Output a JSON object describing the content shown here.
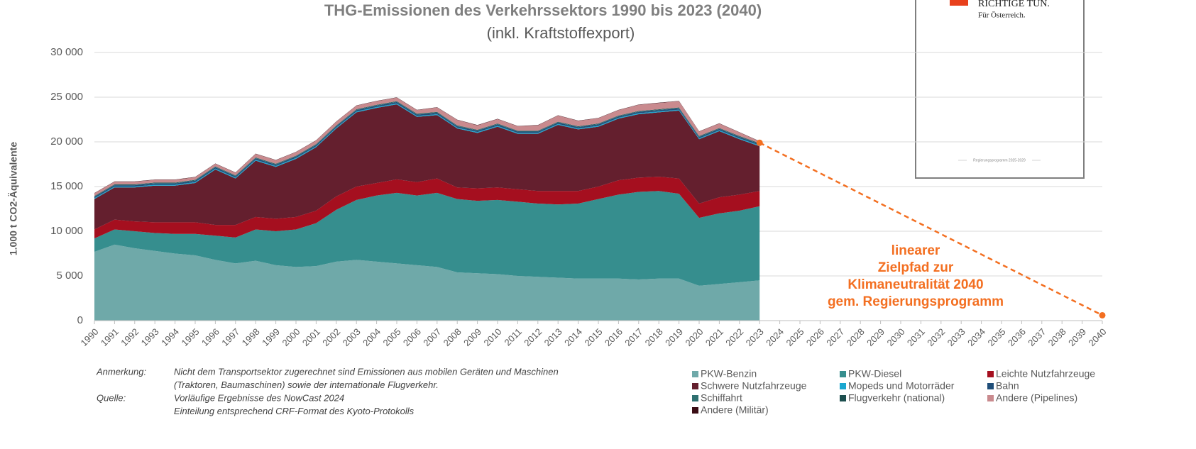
{
  "chart_data": {
    "type": "stacked-area",
    "title": "THG-Emissionen des Verkehrssektors 1990 bis 2023 (2040)",
    "subtitle": "(inkl. Kraftstoffexport)",
    "y_label": "1.000 t CO2-Äquivalente",
    "categories": [
      "1990",
      "1991",
      "1992",
      "1993",
      "1994",
      "1995",
      "1996",
      "1997",
      "1998",
      "1999",
      "2000",
      "2001",
      "2002",
      "2003",
      "2004",
      "2005",
      "2006",
      "2007",
      "2008",
      "2009",
      "2010",
      "2011",
      "2012",
      "2013",
      "2014",
      "2015",
      "2016",
      "2017",
      "2018",
      "2019",
      "2020",
      "2021",
      "2022",
      "2023",
      "2024",
      "2025",
      "2026",
      "2027",
      "2028",
      "2029",
      "2030",
      "2031",
      "2032",
      "2033",
      "2034",
      "2035",
      "2036",
      "2037",
      "2038",
      "2039",
      "2040"
    ],
    "ylim": [
      0,
      30000
    ],
    "yticks": [
      0,
      {
        "value": 5000,
        "label": "5 000"
      },
      {
        "value": 10000,
        "label": "10 000"
      },
      {
        "value": 15000,
        "label": "15 000"
      },
      {
        "value": 20000,
        "label": "20 000"
      },
      {
        "value": 25000,
        "label": "25 000"
      },
      {
        "value": 30000,
        "label": "30 000"
      }
    ],
    "grid": true,
    "series": [
      {
        "name": "PKW-Benzin",
        "color": "#6fa9a9",
        "values": [
          7700,
          8500,
          8100,
          7800,
          7500,
          7300,
          6800,
          6400,
          6700,
          6200,
          6000,
          6100,
          6600,
          6800,
          6600,
          6400,
          6200,
          6000,
          5400,
          5300,
          5200,
          5000,
          4900,
          4800,
          4700,
          4700,
          4700,
          4600,
          4700,
          4700,
          3900,
          4100,
          4300,
          4500,
          null,
          null,
          null,
          null,
          null,
          null,
          null,
          null,
          null,
          null,
          null,
          null,
          null,
          null,
          null,
          null,
          null
        ]
      },
      {
        "name": "PKW-Diesel",
        "color": "#368e8e",
        "values": [
          1500,
          1700,
          1900,
          2000,
          2200,
          2400,
          2700,
          2900,
          3500,
          3800,
          4200,
          4800,
          5800,
          6700,
          7400,
          7900,
          7800,
          8300,
          8200,
          8100,
          8300,
          8300,
          8200,
          8200,
          8400,
          8900,
          9400,
          9800,
          9800,
          9500,
          7600,
          7900,
          8000,
          8300,
          null,
          null,
          null,
          null,
          null,
          null,
          null,
          null,
          null,
          null,
          null,
          null,
          null,
          null,
          null,
          null,
          null
        ]
      },
      {
        "name": "Leichte Nutzfahrzeuge",
        "color": "#a50f1f",
        "values": [
          1000,
          1100,
          1100,
          1200,
          1300,
          1300,
          1200,
          1400,
          1400,
          1400,
          1400,
          1400,
          1500,
          1500,
          1400,
          1500,
          1500,
          1600,
          1300,
          1400,
          1400,
          1400,
          1400,
          1500,
          1400,
          1400,
          1600,
          1600,
          1600,
          1700,
          1600,
          1800,
          1800,
          1700,
          null,
          null,
          null,
          null,
          null,
          null,
          null,
          null,
          null,
          null,
          null,
          null,
          null,
          null,
          null,
          null,
          null
        ]
      },
      {
        "name": "Schwere Nutzfahrzeuge",
        "color": "#641f2e",
        "values": [
          3400,
          3600,
          3800,
          4100,
          4100,
          4400,
          6200,
          5200,
          6300,
          5800,
          6500,
          7100,
          7600,
          8300,
          8400,
          8400,
          7300,
          7100,
          6600,
          6200,
          6800,
          6200,
          6400,
          7400,
          6900,
          6700,
          6900,
          7100,
          7200,
          7600,
          7200,
          7400,
          6200,
          5000,
          null,
          null,
          null,
          null,
          null,
          null,
          null,
          null,
          null,
          null,
          null,
          null,
          null,
          null,
          null,
          null,
          null
        ]
      },
      {
        "name": "Mopeds und Motorräder",
        "color": "#1aa7d0",
        "values": [
          100,
          100,
          100,
          100,
          100,
          100,
          100,
          100,
          100,
          100,
          100,
          100,
          100,
          100,
          100,
          100,
          100,
          100,
          100,
          100,
          100,
          100,
          100,
          100,
          100,
          100,
          100,
          100,
          100,
          100,
          100,
          100,
          100,
          100,
          null,
          null,
          null,
          null,
          null,
          null,
          null,
          null,
          null,
          null,
          null,
          null,
          null,
          null,
          null,
          null,
          null
        ]
      },
      {
        "name": "Bahn",
        "color": "#1f4e79",
        "values": [
          150,
          150,
          150,
          150,
          150,
          150,
          150,
          150,
          150,
          150,
          150,
          150,
          150,
          150,
          150,
          150,
          150,
          150,
          150,
          150,
          150,
          150,
          150,
          150,
          150,
          150,
          150,
          150,
          150,
          150,
          150,
          150,
          150,
          150,
          null,
          null,
          null,
          null,
          null,
          null,
          null,
          null,
          null,
          null,
          null,
          null,
          null,
          null,
          null,
          null,
          null
        ]
      },
      {
        "name": "Schiffahrt",
        "color": "#2e7070",
        "values": [
          50,
          50,
          50,
          50,
          50,
          50,
          50,
          50,
          50,
          50,
          50,
          50,
          50,
          50,
          50,
          50,
          50,
          50,
          50,
          50,
          50,
          50,
          50,
          50,
          50,
          50,
          50,
          50,
          50,
          50,
          50,
          50,
          50,
          50,
          null,
          null,
          null,
          null,
          null,
          null,
          null,
          null,
          null,
          null,
          null,
          null,
          null,
          null,
          null,
          null,
          null
        ]
      },
      {
        "name": "Flugverkehr (national)",
        "color": "#1d4f4f",
        "values": [
          50,
          50,
          50,
          50,
          50,
          50,
          50,
          50,
          50,
          50,
          50,
          50,
          50,
          50,
          50,
          50,
          50,
          50,
          50,
          50,
          50,
          50,
          50,
          50,
          50,
          50,
          50,
          50,
          50,
          50,
          50,
          50,
          50,
          50,
          null,
          null,
          null,
          null,
          null,
          null,
          null,
          null,
          null,
          null,
          null,
          null,
          null,
          null,
          null,
          null,
          null
        ]
      },
      {
        "name": "Andere (Pipelines)",
        "color": "#c98a8e",
        "values": [
          300,
          300,
          300,
          300,
          300,
          300,
          300,
          300,
          400,
          400,
          400,
          400,
          400,
          400,
          400,
          400,
          400,
          500,
          600,
          500,
          500,
          500,
          600,
          700,
          600,
          600,
          600,
          700,
          700,
          700,
          500,
          500,
          400,
          200,
          null,
          null,
          null,
          null,
          null,
          null,
          null,
          null,
          null,
          null,
          null,
          null,
          null,
          null,
          null,
          null,
          null
        ]
      },
      {
        "name": "Andere (Militär)",
        "color": "#3a0c14",
        "values": [
          30,
          30,
          30,
          30,
          30,
          30,
          30,
          30,
          30,
          30,
          30,
          30,
          30,
          30,
          30,
          30,
          30,
          30,
          30,
          30,
          30,
          30,
          30,
          30,
          30,
          30,
          30,
          30,
          30,
          30,
          30,
          30,
          30,
          30,
          null,
          null,
          null,
          null,
          null,
          null,
          null,
          null,
          null,
          null,
          null,
          null,
          null,
          null,
          null,
          null,
          null
        ]
      }
    ],
    "target": {
      "categories": [
        "2023",
        "2040"
      ],
      "values": [
        19900,
        600
      ],
      "color": "#f36f21",
      "label": [
        "linearer",
        "Zielpfad zur",
        "Klimaneutralität 2040",
        "gem. Regierungsprogramm"
      ]
    },
    "notes": [
      {
        "label": "Anmerkung:",
        "lines": [
          "Nicht dem Transportsektor zugerechnet sind Emissionen aus mobilen Geräten und Maschinen",
          "(Traktoren, Baumaschinen) sowie der internationale Flugverkehr."
        ]
      },
      {
        "label": "Quelle:",
        "lines": [
          "Vorläufige Ergebnisse des NowCast 2024",
          "Einteilung entsprechend CRF-Format des Kyoto-Protokolls"
        ]
      }
    ],
    "inset": {
      "lines": [
        "RICHTIGE TUN.",
        "Für Österreich."
      ],
      "footer": "Regierungsprogramm 2025-2029"
    }
  }
}
